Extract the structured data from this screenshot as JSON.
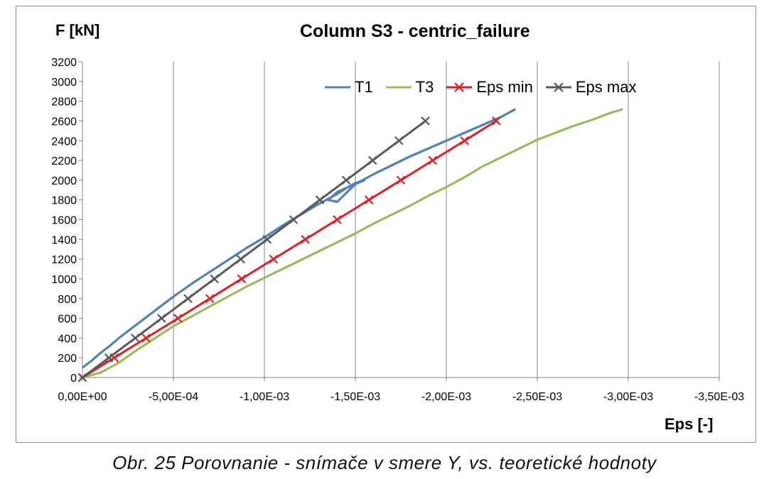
{
  "chart_data": {
    "type": "line",
    "title": "Column S3 - centric_failure",
    "ylabel": "F [kN]",
    "xlabel": "Eps [-]",
    "caption": "Obr. 25  Porovnanie - snímače v smere Y, vs. teoretické hodnoty",
    "xlim": [
      0,
      -0.0035
    ],
    "ylim": [
      0,
      3200
    ],
    "x_ticks": [
      "0,00E+00",
      "-5,00E-04",
      "-1,00E-03",
      "-1,50E-03",
      "-2,00E-03",
      "-2,50E-03",
      "-3,00E-03",
      "-3,50E-03"
    ],
    "x_tick_values": [
      0,
      -0.0005,
      -0.001,
      -0.0015,
      -0.002,
      -0.0025,
      -0.003,
      -0.0035
    ],
    "y_ticks": [
      0,
      200,
      400,
      600,
      800,
      1000,
      1200,
      1400,
      1600,
      1800,
      2000,
      2200,
      2400,
      2600,
      2800,
      3000,
      3200
    ],
    "grid": "vertical",
    "legend_position": "top-right",
    "series": [
      {
        "name": "T1",
        "color": "#4f81bd",
        "marker": "none",
        "x": [
          0,
          -5e-05,
          -0.0001,
          -0.00015,
          -0.0002,
          -0.00025,
          -0.0003,
          -0.00035,
          -0.0004,
          -0.0005,
          -0.0006,
          -0.0007,
          -0.0008,
          -0.0009,
          -0.001,
          -0.0011,
          -0.0012,
          -0.0013,
          -0.0014,
          -0.00145,
          -0.0015,
          -0.00155,
          -0.0015,
          -0.0014,
          -0.00135,
          -0.0014,
          -0.0015,
          -0.0016,
          -0.0017,
          -0.0018,
          -0.0019,
          -0.002,
          -0.0021,
          -0.0022,
          -0.0023,
          -0.00238
        ],
        "y": [
          100,
          170,
          250,
          320,
          400,
          470,
          540,
          610,
          680,
          820,
          950,
          1070,
          1190,
          1310,
          1420,
          1540,
          1650,
          1760,
          1860,
          1920,
          1970,
          2000,
          1960,
          1780,
          1800,
          1880,
          1960,
          2060,
          2150,
          2240,
          2320,
          2400,
          2480,
          2560,
          2640,
          2720
        ]
      },
      {
        "name": "T3",
        "color": "#9bbb59",
        "marker": "none",
        "x": [
          0,
          -0.0001,
          -0.0002,
          -0.0003,
          -0.0004,
          -0.0005,
          -0.0006,
          -0.0007,
          -0.0008,
          -0.0009,
          -0.001,
          -0.0011,
          -0.0012,
          -0.0013,
          -0.0014,
          -0.0015,
          -0.0016,
          -0.0017,
          -0.0018,
          -0.0019,
          -0.002,
          -0.0021,
          -0.0022,
          -0.0023,
          -0.0024,
          -0.0025,
          -0.0026,
          -0.0027,
          -0.0028,
          -0.0029,
          -0.00297
        ],
        "y": [
          0,
          50,
          150,
          280,
          400,
          520,
          620,
          720,
          820,
          920,
          1010,
          1100,
          1190,
          1280,
          1370,
          1460,
          1560,
          1650,
          1740,
          1840,
          1930,
          2030,
          2140,
          2230,
          2320,
          2410,
          2480,
          2550,
          2610,
          2680,
          2720
        ]
      },
      {
        "name": "Eps min",
        "color": "#e31e24",
        "marker": "x",
        "x": [
          0,
          -0.000175,
          -0.00035,
          -0.000525,
          -0.0007,
          -0.000875,
          -0.00105,
          -0.001225,
          -0.0014,
          -0.001575,
          -0.00175,
          -0.001925,
          -0.0021,
          -0.002275
        ],
        "y": [
          0,
          200,
          400,
          600,
          800,
          1000,
          1200,
          1400,
          1600,
          1800,
          2000,
          2200,
          2400,
          2600
        ]
      },
      {
        "name": "Eps max",
        "color": "#595959",
        "marker": "x",
        "x": [
          0,
          -0.000145,
          -0.00029,
          -0.000435,
          -0.00058,
          -0.000725,
          -0.00087,
          -0.001015,
          -0.00116,
          -0.001305,
          -0.00145,
          -0.001595,
          -0.00174,
          -0.001885
        ],
        "y": [
          0,
          200,
          400,
          600,
          800,
          1000,
          1200,
          1400,
          1600,
          1800,
          2000,
          2200,
          2400,
          2600
        ]
      }
    ]
  }
}
